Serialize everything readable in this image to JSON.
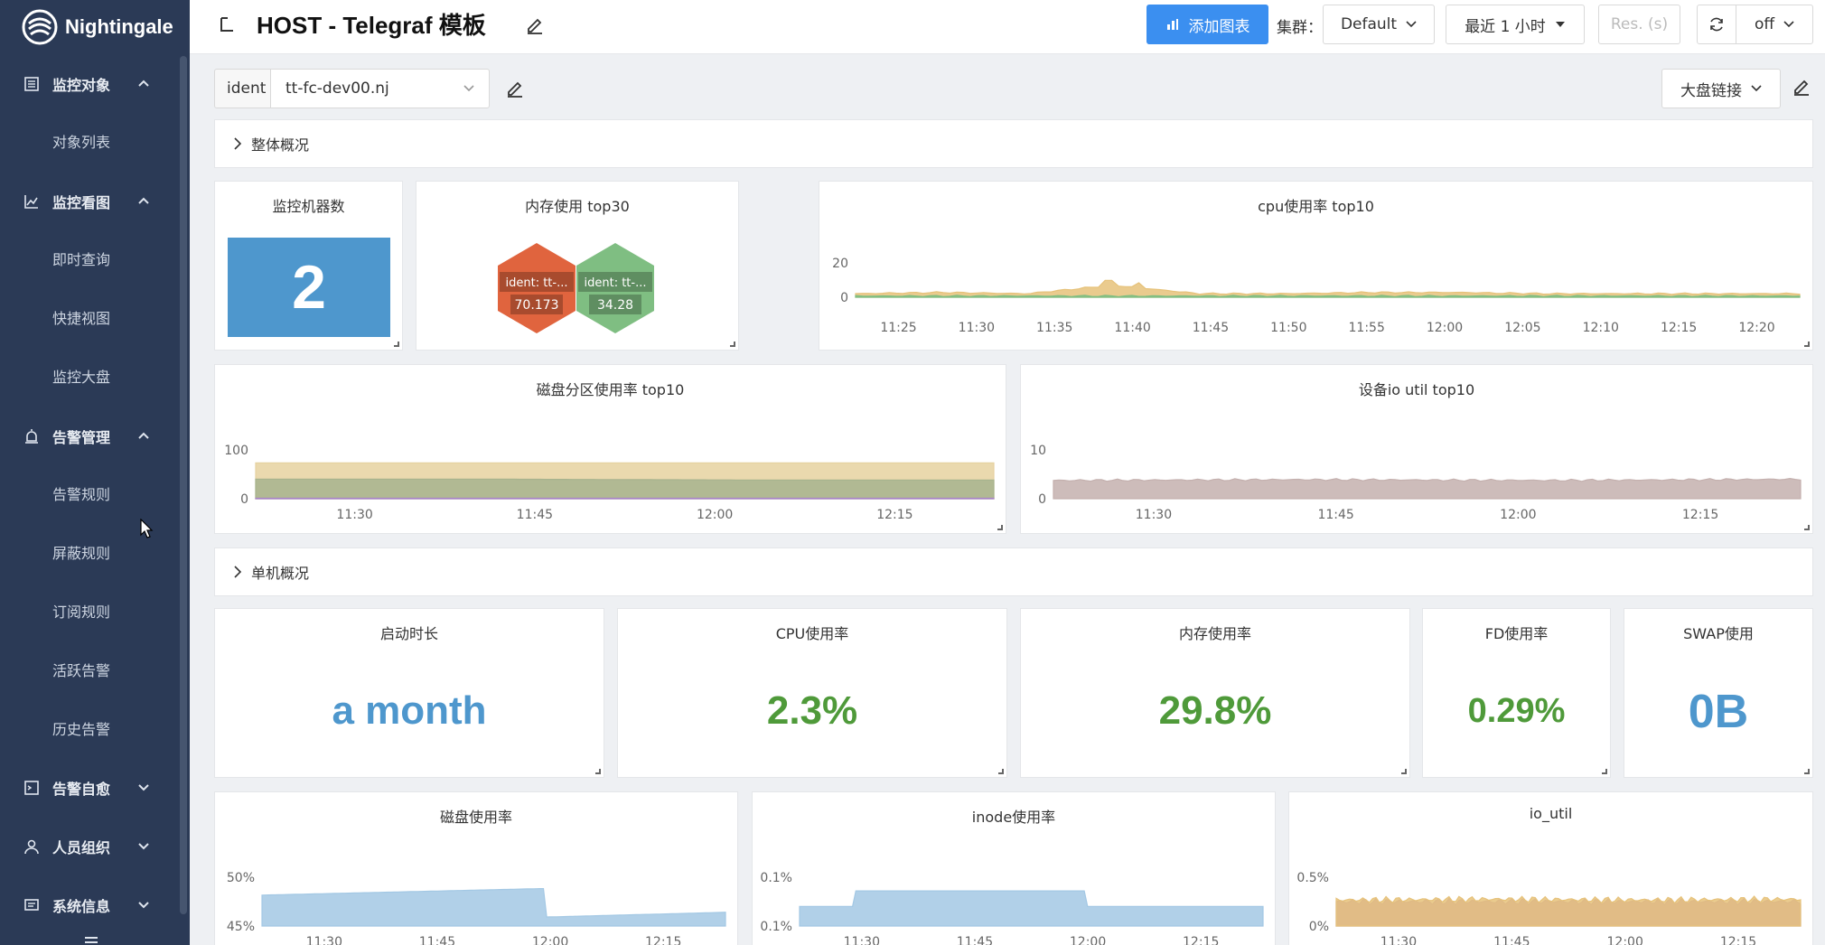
{
  "sidebar": {
    "logo_text": "Nightingale",
    "groups": [
      {
        "label": "监控对象",
        "icon": "list-icon",
        "expanded": true,
        "items": [
          "对象列表"
        ]
      },
      {
        "label": "监控看图",
        "icon": "line-chart-icon",
        "expanded": true,
        "items": [
          "即时查询",
          "快捷视图",
          "监控大盘"
        ]
      },
      {
        "label": "告警管理",
        "icon": "alarm-icon",
        "expanded": true,
        "items": [
          "告警规则",
          "屏蔽规则",
          "订阅规则",
          "活跃告警",
          "历史告警"
        ]
      },
      {
        "label": "告警自愈",
        "icon": "terminal-icon",
        "expanded": false,
        "items": []
      },
      {
        "label": "人员组织",
        "icon": "user-icon",
        "expanded": false,
        "items": []
      },
      {
        "label": "系统信息",
        "icon": "message-icon",
        "expanded": false,
        "items": []
      }
    ]
  },
  "header": {
    "title": "HOST - Telegraf 模板",
    "add_chart_label": "添加图表",
    "cluster_label": "集群：",
    "cluster_value": "Default",
    "time_range": "最近 1 小时",
    "resolution_placeholder": "Res. (s)",
    "refresh_value": "off"
  },
  "variables": {
    "ident_label": "ident",
    "ident_value": "tt-fc-dev00.nj",
    "dashboard_link_label": "大盘链接"
  },
  "rows": {
    "overview": "整体概况",
    "single": "单机概况"
  },
  "panels": {
    "host_count": {
      "title": "监控机器数",
      "value": "2",
      "color": "#4e97cd"
    },
    "mem_top": {
      "title": "内存使用 top30",
      "hexes": [
        {
          "label": "ident: tt-...",
          "value": "70.173",
          "color": "#e0643e"
        },
        {
          "label": "ident: tt-...",
          "value": "34.28",
          "color": "#7fbe82"
        }
      ]
    },
    "cpu_top": {
      "title": "cpu使用率 top10"
    },
    "disk_part_top": {
      "title": "磁盘分区使用率 top10"
    },
    "io_util_top": {
      "title": "设备io util top10"
    },
    "uptime": {
      "title": "启动时长",
      "value": "a month",
      "color": "#4e97cd"
    },
    "cpu_usage": {
      "title": "CPU使用率",
      "value": "2.3%",
      "color": "#4f9a3a"
    },
    "mem_usage": {
      "title": "内存使用率",
      "value": "29.8%",
      "color": "#4f9a3a"
    },
    "fd_usage": {
      "title": "FD使用率",
      "value": "0.29%",
      "color": "#4f9a3a"
    },
    "swap_usage": {
      "title": "SWAP使用",
      "value": "0B",
      "color": "#4e97cd"
    },
    "disk_usage": {
      "title": "磁盘使用率"
    },
    "inode_usage": {
      "title": "inode使用率"
    },
    "io_util": {
      "title": "io_util"
    }
  },
  "chart_data": [
    {
      "name_ref": "cpu_top",
      "type": "area",
      "x": [
        "11:25",
        "11:30",
        "11:35",
        "11:40",
        "11:45",
        "11:50",
        "11:55",
        "12:00",
        "12:05",
        "12:10",
        "12:15",
        "12:20"
      ],
      "y_ticks": [
        "20",
        "0"
      ],
      "ylim": [
        0,
        30
      ],
      "series": [
        {
          "color": "#e6c27a",
          "values": [
            3,
            4,
            3,
            10,
            3,
            3,
            4,
            4,
            3,
            3,
            3,
            3
          ]
        },
        {
          "color": "#7fbe82",
          "values": [
            1,
            1,
            1,
            1,
            1,
            1,
            1,
            1,
            1,
            1,
            1,
            1
          ]
        }
      ]
    },
    {
      "name_ref": "disk_part_top",
      "type": "area",
      "x": [
        "11:30",
        "11:45",
        "12:00",
        "12:15"
      ],
      "y_ticks": [
        "100",
        "0"
      ],
      "ylim": [
        0,
        120
      ],
      "series": [
        {
          "color": "#e6d2a0",
          "values": [
            88,
            88,
            88,
            88
          ]
        },
        {
          "color": "#a7b38e",
          "values": [
            48,
            48,
            46,
            46
          ]
        },
        {
          "color": "#a884c8",
          "values": [
            1,
            1,
            1,
            1
          ]
        }
      ]
    },
    {
      "name_ref": "io_util_top",
      "type": "area",
      "x": [
        "11:30",
        "11:45",
        "12:00",
        "12:15"
      ],
      "y_ticks": [
        "10",
        "0"
      ],
      "ylim": [
        0,
        12
      ],
      "series": [
        {
          "color": "#c4b0ae",
          "values": [
            4.5,
            4.7,
            4.5,
            4.8
          ]
        }
      ]
    },
    {
      "name_ref": "disk_usage",
      "type": "area",
      "x": [
        "11:30",
        "11:45",
        "12:00",
        "12:15"
      ],
      "y_ticks": [
        "50%",
        "45%"
      ],
      "ylim": [
        45,
        51
      ],
      "series": [
        {
          "color": "#a3c8e4",
          "values": [
            48.8,
            49.3,
            49.6,
            46.1
          ]
        }
      ]
    },
    {
      "name_ref": "inode_usage",
      "type": "area",
      "x": [
        "11:30",
        "11:45",
        "12:00",
        "12:15"
      ],
      "y_ticks": [
        "0.1%",
        "0.1%"
      ],
      "series": [
        {
          "color": "#a3c8e4",
          "values": [
            0.09,
            0.098,
            0.098,
            0.09
          ]
        }
      ]
    },
    {
      "name_ref": "io_util",
      "type": "area",
      "x": [
        "11:30",
        "11:45",
        "12:00",
        "12:15"
      ],
      "y_ticks": [
        "0.5%",
        "0%"
      ],
      "series": [
        {
          "color": "#b58cc0",
          "values": [
            0.3,
            0.3,
            0.3,
            0.3
          ]
        },
        {
          "color": "#e6c27a",
          "values": [
            0.32,
            0.33,
            0.32,
            0.33
          ]
        }
      ]
    }
  ]
}
